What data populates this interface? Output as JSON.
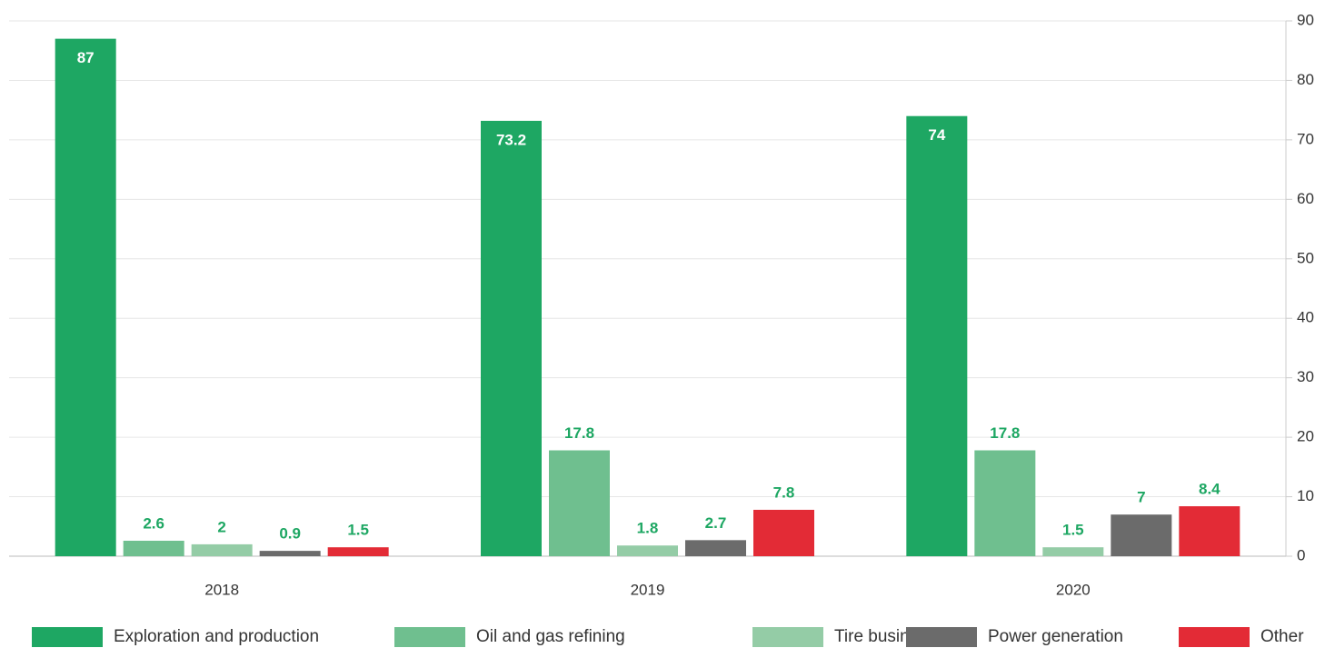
{
  "chart_data": {
    "type": "bar",
    "categories": [
      "2018",
      "2019",
      "2020"
    ],
    "series": [
      {
        "name": "Exploration and production",
        "color": "#1ea763",
        "values": [
          87,
          73.2,
          74
        ]
      },
      {
        "name": "Oil and gas refining",
        "color": "#6fbf8f",
        "values": [
          2.6,
          17.8,
          17.8
        ]
      },
      {
        "name": "Tire business",
        "color": "#94cca6",
        "values": [
          2,
          1.8,
          1.5
        ]
      },
      {
        "name": "Power generation",
        "color": "#6b6b6b",
        "values": [
          0.9,
          2.7,
          7
        ]
      },
      {
        "name": "Other",
        "color": "#e32b36",
        "values": [
          1.5,
          7.8,
          8.4
        ]
      }
    ],
    "ylim": [
      0,
      90
    ],
    "yticks": [
      0,
      10,
      20,
      30,
      40,
      50,
      60,
      70,
      80,
      90
    ],
    "grid": true,
    "legend": "bottom"
  }
}
